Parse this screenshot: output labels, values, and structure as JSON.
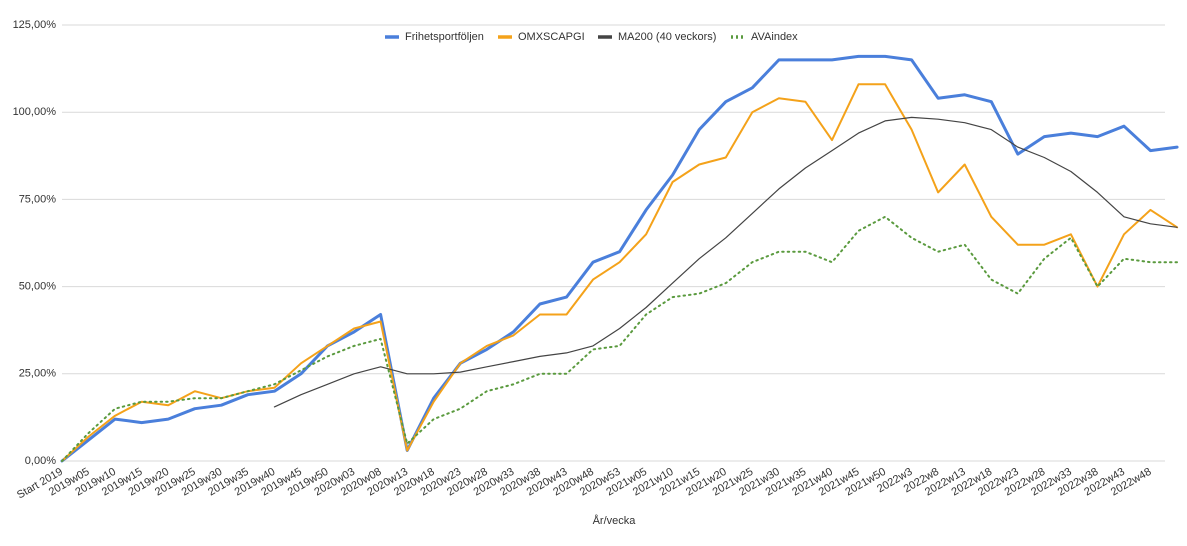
{
  "chart_data": {
    "type": "line",
    "x_label": "År/vecka",
    "categories": [
      "Start 2019",
      "2019w05",
      "2019w10",
      "2019w15",
      "2019w20",
      "2019w25",
      "2019w30",
      "2019w35",
      "2019w40",
      "2019w45",
      "2019w50",
      "2020w03",
      "2020w08",
      "2020w13",
      "2020w18",
      "2020w23",
      "2020w28",
      "2020w33",
      "2020w38",
      "2020w43",
      "2020w48",
      "2020w53",
      "2021w05",
      "2021w10",
      "2021w15",
      "2021w20",
      "2021w25",
      "2021w30",
      "2021w35",
      "2021w40",
      "2021w45",
      "2021w50",
      "2022w3",
      "2022w8",
      "2022w13",
      "2022w18",
      "2022w23",
      "2022w28",
      "2022w33",
      "2022w38",
      "2022w43",
      "2022w48",
      null
    ],
    "series": [
      {
        "name": "Frihetsportföljen",
        "color": "#4a7fdb",
        "width": 3,
        "style": "solid",
        "values": [
          0,
          6,
          12,
          11,
          12,
          15,
          16,
          19,
          20,
          25,
          33,
          37,
          42,
          3,
          18,
          28,
          32,
          37,
          45,
          47,
          57,
          60,
          72,
          82,
          95,
          103,
          107,
          115,
          115,
          115,
          116,
          116,
          115,
          104,
          105,
          103,
          88,
          93,
          94,
          93,
          96,
          89,
          90
        ]
      },
      {
        "name": "OMXSCAPGI",
        "color": "#f4a21a",
        "width": 2,
        "style": "solid",
        "values": [
          0,
          7,
          13,
          17,
          16,
          20,
          18,
          20,
          21,
          28,
          33,
          38,
          40,
          3,
          17,
          28,
          33,
          36,
          42,
          42,
          52,
          57,
          65,
          80,
          85,
          87,
          100,
          104,
          103,
          92,
          108,
          108,
          95,
          77,
          85,
          70,
          62,
          62,
          65,
          50,
          65,
          72,
          67
        ]
      },
      {
        "name": "MA200 (40 veckors)",
        "color": "#444444",
        "width": 1.2,
        "style": "solid",
        "values": [
          null,
          null,
          null,
          null,
          null,
          null,
          null,
          null,
          15.5,
          19,
          22,
          25,
          27,
          25,
          25,
          25.5,
          27,
          28.5,
          30,
          31,
          33,
          38,
          44,
          51,
          58,
          64,
          71,
          78,
          84,
          89,
          94,
          97.5,
          98.5,
          98,
          97,
          95,
          90,
          87,
          83,
          77,
          70,
          68,
          67
        ]
      },
      {
        "name": "AVAindex",
        "color": "#5a9a3e",
        "width": 2,
        "style": "dotted",
        "values": [
          0,
          8,
          15,
          17,
          17,
          18,
          18,
          20,
          22,
          26,
          30,
          33,
          35,
          5,
          12,
          15,
          20,
          22,
          25,
          25,
          32,
          33,
          42,
          47,
          48,
          51,
          57,
          60,
          60,
          57,
          66,
          70,
          64,
          60,
          62,
          52,
          48,
          58,
          64,
          50,
          58,
          57,
          57
        ]
      }
    ],
    "ylim": [
      0,
      125
    ],
    "yticks": [
      {
        "value": 0,
        "label": "0,00%"
      },
      {
        "value": 25,
        "label": "25,00%"
      },
      {
        "value": 50,
        "label": "50,00%"
      },
      {
        "value": 75,
        "label": "75,00%"
      },
      {
        "value": 100,
        "label": "100,00%"
      },
      {
        "value": 125,
        "label": "125,00%"
      }
    ],
    "grid": true,
    "legend": "top"
  }
}
